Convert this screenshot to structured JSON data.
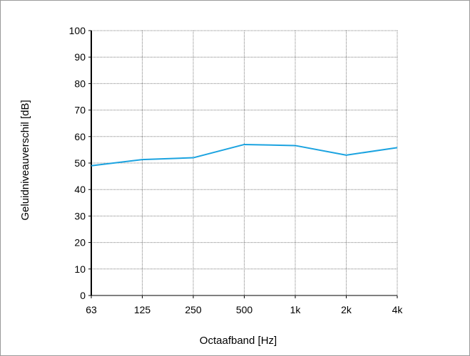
{
  "chart_data": {
    "type": "line",
    "xlabel": "Octaafband  [Hz]",
    "ylabel": "Geluidniveauverschil  [dB]",
    "categories": [
      "63",
      "125",
      "250",
      "500",
      "1k",
      "2k",
      "4k"
    ],
    "series": [
      {
        "values": [
          49,
          51.3,
          52,
          57,
          56.6,
          53,
          55.8
        ]
      }
    ],
    "y_ticks": [
      "0",
      "10",
      "20",
      "30",
      "40",
      "50",
      "60",
      "70",
      "80",
      "90",
      "100"
    ],
    "ylim": [
      0,
      100
    ],
    "grid": true,
    "legend": "none",
    "colors": {
      "line": "#1ba3e0",
      "grid": "#7f7f7f",
      "axis": "#000000"
    }
  }
}
